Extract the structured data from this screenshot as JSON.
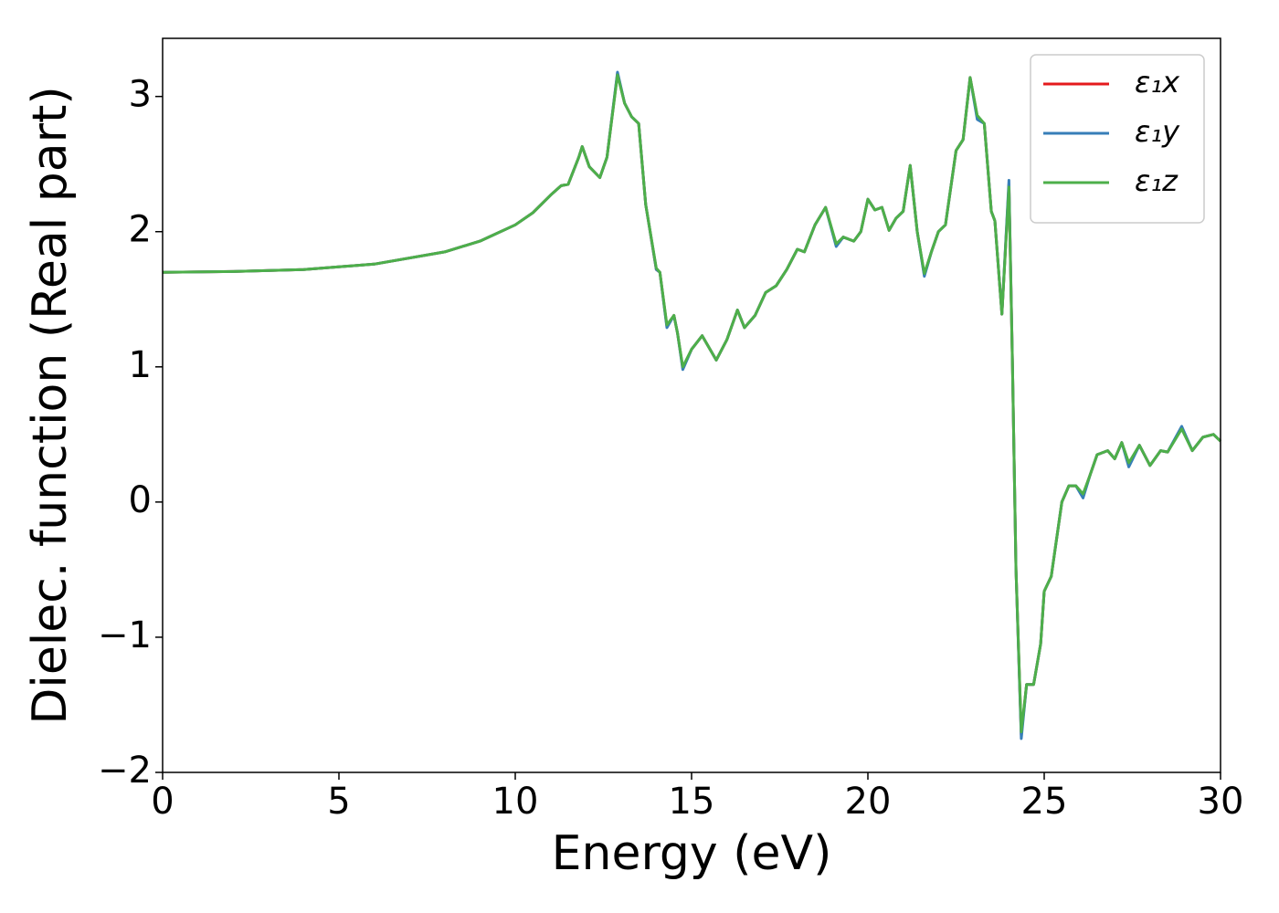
{
  "chart_data": {
    "type": "line",
    "xlabel": "Energy (eV)",
    "ylabel": "Dielec. function (Real part)",
    "xlim": [
      0,
      30
    ],
    "ylim": [
      -2,
      3.43
    ],
    "xticks": [
      0,
      5,
      10,
      15,
      20,
      25,
      30
    ],
    "yticks": [
      {
        "value": -2,
        "label": "−2"
      },
      {
        "value": -1,
        "label": "−1"
      },
      0,
      1,
      2,
      3
    ],
    "legend": "upper right",
    "x": [
      0,
      2,
      4,
      6,
      8,
      9,
      10,
      10.5,
      11,
      11.3,
      11.5,
      11.8,
      11.9,
      12.1,
      12.4,
      12.6,
      12.9,
      13.1,
      13.3,
      13.5,
      13.7,
      14.0,
      14.1,
      14.3,
      14.5,
      14.6,
      14.75,
      15.0,
      15.3,
      15.7,
      16.0,
      16.3,
      16.5,
      16.8,
      17.1,
      17.4,
      17.7,
      18.0,
      18.2,
      18.5,
      18.8,
      19.1,
      19.3,
      19.6,
      19.8,
      20.0,
      20.2,
      20.4,
      20.6,
      20.8,
      21.0,
      21.2,
      21.4,
      21.6,
      21.8,
      22.0,
      22.2,
      22.5,
      22.7,
      22.9,
      23.1,
      23.3,
      23.5,
      23.6,
      23.8,
      24.0,
      24.1,
      24.2,
      24.35,
      24.5,
      24.7,
      24.9,
      25.0,
      25.2,
      25.5,
      25.7,
      25.9,
      26.1,
      26.3,
      26.5,
      26.8,
      27.0,
      27.2,
      27.4,
      27.7,
      28.0,
      28.3,
      28.5,
      28.9,
      29.2,
      29.5,
      29.8,
      30.0
    ],
    "series": [
      {
        "name": "ε₁x",
        "color": "#e41a1c",
        "values": [
          1.7,
          1.705,
          1.72,
          1.76,
          1.85,
          1.93,
          2.05,
          2.14,
          2.27,
          2.34,
          2.35,
          2.55,
          2.63,
          2.48,
          2.4,
          2.55,
          3.17,
          2.95,
          2.85,
          2.8,
          2.2,
          1.72,
          1.7,
          1.3,
          1.38,
          1.25,
          0.99,
          1.13,
          1.23,
          1.05,
          1.2,
          1.42,
          1.29,
          1.38,
          1.55,
          1.6,
          1.72,
          1.87,
          1.85,
          2.05,
          2.18,
          1.9,
          1.96,
          1.93,
          2.0,
          2.24,
          2.16,
          2.18,
          2.01,
          2.1,
          2.15,
          2.49,
          2.0,
          1.68,
          1.85,
          2.0,
          2.05,
          2.6,
          2.68,
          3.14,
          2.85,
          2.8,
          2.15,
          2.08,
          1.39,
          2.35,
          1.0,
          -0.5,
          -1.72,
          -1.35,
          -1.35,
          -1.05,
          -0.66,
          -0.55,
          0.0,
          0.12,
          0.12,
          0.05,
          0.2,
          0.35,
          0.38,
          0.32,
          0.44,
          0.28,
          0.42,
          0.27,
          0.38,
          0.37,
          0.55,
          0.38,
          0.48,
          0.5,
          0.45
        ]
      },
      {
        "name": "ε₁y",
        "color": "#377eb8",
        "values": [
          1.7,
          1.705,
          1.72,
          1.76,
          1.85,
          1.93,
          2.05,
          2.14,
          2.27,
          2.34,
          2.35,
          2.55,
          2.63,
          2.48,
          2.4,
          2.55,
          3.18,
          2.95,
          2.85,
          2.8,
          2.2,
          1.72,
          1.7,
          1.29,
          1.38,
          1.25,
          0.98,
          1.13,
          1.23,
          1.05,
          1.2,
          1.42,
          1.29,
          1.38,
          1.55,
          1.6,
          1.72,
          1.87,
          1.85,
          2.05,
          2.18,
          1.89,
          1.96,
          1.93,
          2.0,
          2.24,
          2.16,
          2.18,
          2.01,
          2.1,
          2.15,
          2.49,
          2.0,
          1.67,
          1.85,
          2.0,
          2.05,
          2.6,
          2.68,
          3.14,
          2.83,
          2.8,
          2.15,
          2.08,
          1.39,
          2.38,
          1.0,
          -0.5,
          -1.75,
          -1.35,
          -1.35,
          -1.05,
          -0.66,
          -0.55,
          0.0,
          0.12,
          0.12,
          0.03,
          0.2,
          0.35,
          0.38,
          0.32,
          0.44,
          0.26,
          0.42,
          0.27,
          0.38,
          0.37,
          0.56,
          0.38,
          0.48,
          0.5,
          0.45
        ]
      },
      {
        "name": "ε₁z",
        "color": "#4daf4a",
        "values": [
          1.7,
          1.705,
          1.72,
          1.76,
          1.85,
          1.93,
          2.05,
          2.14,
          2.27,
          2.34,
          2.35,
          2.55,
          2.63,
          2.48,
          2.4,
          2.55,
          3.16,
          2.95,
          2.85,
          2.8,
          2.2,
          1.73,
          1.7,
          1.31,
          1.38,
          1.25,
          1.0,
          1.13,
          1.23,
          1.05,
          1.2,
          1.42,
          1.29,
          1.38,
          1.55,
          1.6,
          1.72,
          1.87,
          1.85,
          2.05,
          2.18,
          1.91,
          1.96,
          1.93,
          2.0,
          2.24,
          2.16,
          2.18,
          2.01,
          2.1,
          2.15,
          2.49,
          2.0,
          1.69,
          1.85,
          2.0,
          2.05,
          2.6,
          2.68,
          3.14,
          2.86,
          2.8,
          2.15,
          2.08,
          1.39,
          2.33,
          1.0,
          -0.5,
          -1.7,
          -1.35,
          -1.35,
          -1.05,
          -0.66,
          -0.55,
          0.0,
          0.12,
          0.12,
          0.06,
          0.2,
          0.35,
          0.38,
          0.32,
          0.44,
          0.29,
          0.42,
          0.27,
          0.38,
          0.37,
          0.54,
          0.38,
          0.48,
          0.5,
          0.45
        ]
      }
    ]
  }
}
